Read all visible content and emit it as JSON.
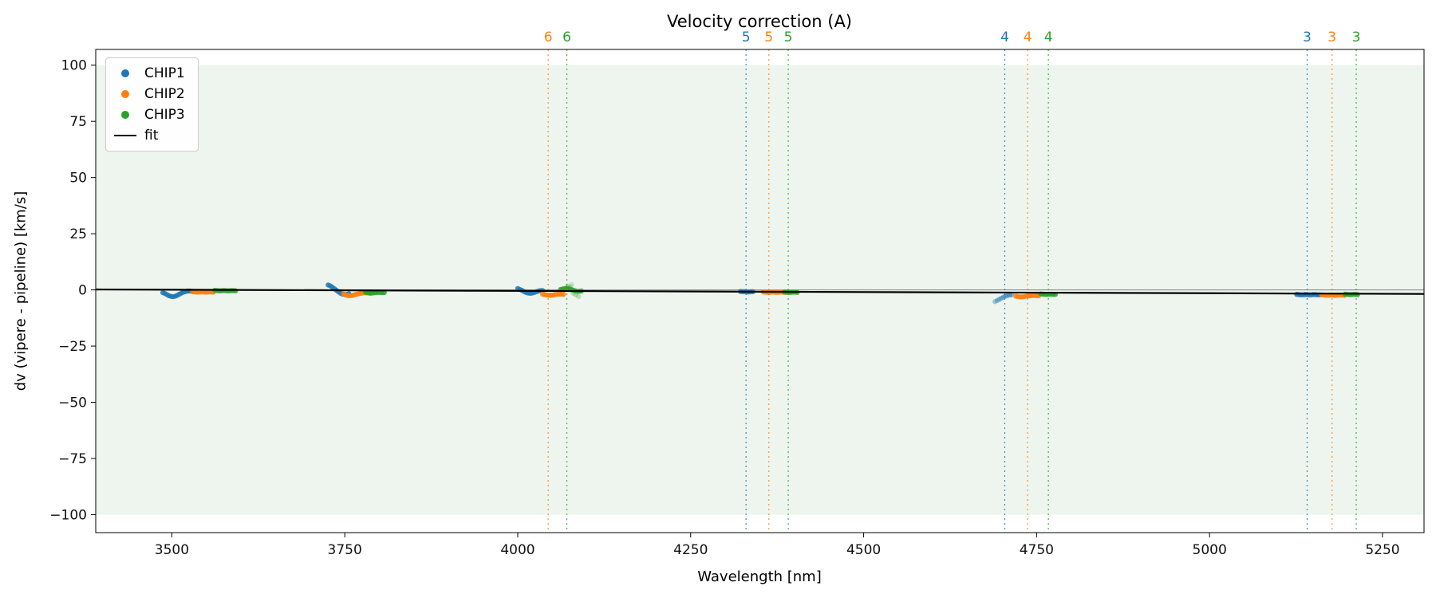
{
  "chart_data": {
    "type": "scatter",
    "title": "Velocity correction (A)",
    "xlabel": "Wavelength [nm]",
    "ylabel": "dv (vipere - pipeline) [km/s]",
    "xlim": [
      3390,
      5310
    ],
    "ylim": [
      -108,
      107
    ],
    "x_ticks": [
      3500,
      3750,
      4000,
      4250,
      4500,
      4750,
      5000,
      5250
    ],
    "y_ticks": [
      -100,
      -75,
      -50,
      -25,
      0,
      25,
      50,
      75,
      100
    ],
    "grid": false,
    "legend_position": "upper left",
    "band": {
      "y_min": -100,
      "y_max": 100,
      "color": "#edf5ee"
    },
    "zero_line": {
      "y": 0,
      "color": "#7f7f7f"
    },
    "fit": {
      "label": "fit",
      "color": "#000000",
      "x": [
        3390,
        5310
      ],
      "y": [
        0.2,
        -1.8
      ]
    },
    "series": [
      {
        "name": "CHIP1",
        "color": "#1f77b4",
        "points": [
          [
            3487,
            -1.2
          ],
          [
            3490,
            -1.6
          ],
          [
            3493,
            -2.1
          ],
          [
            3496,
            -2.6
          ],
          [
            3499,
            -2.9
          ],
          [
            3502,
            -3.0
          ],
          [
            3505,
            -2.8
          ],
          [
            3508,
            -2.4
          ],
          [
            3511,
            -1.9
          ],
          [
            3514,
            -1.4
          ],
          [
            3517,
            -1.0
          ],
          [
            3520,
            -0.7
          ],
          [
            3523,
            -0.5
          ],
          [
            3526,
            -0.5
          ],
          [
            3529,
            -0.6
          ],
          [
            3726,
            2.2
          ],
          [
            3729,
            1.8
          ],
          [
            3732,
            1.2
          ],
          [
            3735,
            0.5
          ],
          [
            3738,
            -0.2
          ],
          [
            3741,
            -0.9
          ],
          [
            3744,
            -1.5
          ],
          [
            3747,
            -1.9
          ],
          [
            3750,
            -2.1
          ],
          [
            3753,
            -2.0
          ],
          [
            3756,
            -1.7
          ],
          [
            4000,
            0.6
          ],
          [
            4003,
            0.2
          ],
          [
            4006,
            -0.2
          ],
          [
            4009,
            -0.7
          ],
          [
            4012,
            -1.1
          ],
          [
            4015,
            -1.4
          ],
          [
            4018,
            -1.5
          ],
          [
            4021,
            -1.4
          ],
          [
            4024,
            -1.1
          ],
          [
            4027,
            -0.8
          ],
          [
            4030,
            -0.5
          ],
          [
            4033,
            -0.3
          ],
          [
            4036,
            -0.3
          ],
          [
            4322,
            -0.7
          ],
          [
            4325,
            -0.8
          ],
          [
            4328,
            -0.8
          ],
          [
            4331,
            -0.9
          ],
          [
            4334,
            -0.9
          ],
          [
            4337,
            -0.8
          ],
          [
            4340,
            -0.8
          ],
          [
            4690,
            -5.2,
            0.4
          ],
          [
            4693,
            -4.7,
            0.4
          ],
          [
            4696,
            -4.2,
            0.45
          ],
          [
            4699,
            -3.7,
            0.45
          ],
          [
            4702,
            -3.2,
            0.5
          ],
          [
            4705,
            -2.8,
            0.5
          ],
          [
            4708,
            -2.5,
            0.5
          ],
          [
            4711,
            -2.3,
            0.5
          ],
          [
            4714,
            -2.2,
            0.5
          ],
          [
            5126,
            -2.0
          ],
          [
            5129,
            -2.1
          ],
          [
            5132,
            -2.2
          ],
          [
            5135,
            -2.2
          ],
          [
            5138,
            -2.1
          ],
          [
            5141,
            -2.1
          ],
          [
            5144,
            -2.2
          ],
          [
            5147,
            -2.2
          ],
          [
            5150,
            -2.1
          ],
          [
            5153,
            -2.1
          ],
          [
            5156,
            -2.2
          ],
          [
            5159,
            -2.2
          ]
        ]
      },
      {
        "name": "CHIP2",
        "color": "#ff7f0e",
        "points": [
          [
            3530,
            -0.8
          ],
          [
            3533,
            -0.9
          ],
          [
            3536,
            -1.0
          ],
          [
            3539,
            -1.0
          ],
          [
            3542,
            -0.9
          ],
          [
            3545,
            -0.9
          ],
          [
            3548,
            -1.0
          ],
          [
            3551,
            -1.0
          ],
          [
            3554,
            -0.9
          ],
          [
            3557,
            -0.9
          ],
          [
            3560,
            -1.0
          ],
          [
            3748,
            -1.8
          ],
          [
            3751,
            -2.2
          ],
          [
            3754,
            -2.5
          ],
          [
            3757,
            -2.6
          ],
          [
            3760,
            -2.5
          ],
          [
            3763,
            -2.3
          ],
          [
            3766,
            -2.0
          ],
          [
            3769,
            -1.8
          ],
          [
            3772,
            -1.6
          ],
          [
            3775,
            -1.4
          ],
          [
            3778,
            -1.3
          ],
          [
            3781,
            -1.3
          ],
          [
            3784,
            -1.4
          ],
          [
            3787,
            -1.5
          ],
          [
            4036,
            -1.9
          ],
          [
            4039,
            -2.1
          ],
          [
            4042,
            -2.3
          ],
          [
            4045,
            -2.4
          ],
          [
            4048,
            -2.4
          ],
          [
            4051,
            -2.3
          ],
          [
            4054,
            -2.1
          ],
          [
            4057,
            -2.0
          ],
          [
            4060,
            -1.9
          ],
          [
            4063,
            -1.9
          ],
          [
            4066,
            -2.0
          ],
          [
            4355,
            -0.9
          ],
          [
            4358,
            -1.0
          ],
          [
            4361,
            -1.1
          ],
          [
            4364,
            -1.1
          ],
          [
            4367,
            -1.0
          ],
          [
            4370,
            -1.0
          ],
          [
            4373,
            -1.1
          ],
          [
            4376,
            -1.1
          ],
          [
            4379,
            -1.0
          ],
          [
            4382,
            -1.0
          ],
          [
            4385,
            -1.1
          ],
          [
            4388,
            -1.1
          ],
          [
            4391,
            -1.0
          ],
          [
            4720,
            -2.8
          ],
          [
            4723,
            -3.0
          ],
          [
            4726,
            -3.1
          ],
          [
            4729,
            -3.1
          ],
          [
            4732,
            -3.0
          ],
          [
            4735,
            -2.8
          ],
          [
            4738,
            -2.7
          ],
          [
            4741,
            -2.6
          ],
          [
            4744,
            -2.5
          ],
          [
            4747,
            -2.5
          ],
          [
            4750,
            -2.6
          ],
          [
            4753,
            -2.6
          ],
          [
            5162,
            -2.2
          ],
          [
            5165,
            -2.3
          ],
          [
            5168,
            -2.4
          ],
          [
            5171,
            -2.4
          ],
          [
            5174,
            -2.3
          ],
          [
            5177,
            -2.3
          ],
          [
            5180,
            -2.4
          ],
          [
            5183,
            -2.4
          ],
          [
            5186,
            -2.3
          ],
          [
            5189,
            -2.3
          ],
          [
            5192,
            -2.3
          ],
          [
            5195,
            -2.4
          ]
        ]
      },
      {
        "name": "CHIP3",
        "color": "#2ca02c",
        "points": [
          [
            3562,
            -0.2
          ],
          [
            3565,
            -0.3
          ],
          [
            3568,
            -0.4
          ],
          [
            3571,
            -0.4
          ],
          [
            3574,
            -0.3
          ],
          [
            3577,
            -0.3
          ],
          [
            3580,
            -0.4
          ],
          [
            3583,
            -0.4
          ],
          [
            3586,
            -0.3
          ],
          [
            3589,
            -0.3
          ],
          [
            3592,
            -0.4
          ],
          [
            3780,
            -1.0
          ],
          [
            3783,
            -1.2
          ],
          [
            3786,
            -1.3
          ],
          [
            3789,
            -1.4
          ],
          [
            3792,
            -1.3
          ],
          [
            3795,
            -1.2
          ],
          [
            3798,
            -1.1
          ],
          [
            3801,
            -1.1
          ],
          [
            3804,
            -1.2
          ],
          [
            3807,
            -1.2
          ],
          [
            4062,
            0.2
          ],
          [
            4065,
            0.4
          ],
          [
            4068,
            0.6
          ],
          [
            4071,
            0.7
          ],
          [
            4074,
            0.5
          ],
          [
            4077,
            0.2
          ],
          [
            4080,
            -0.1
          ],
          [
            4083,
            -0.4
          ],
          [
            4086,
            -0.6
          ],
          [
            4089,
            -0.6
          ],
          [
            4092,
            -0.5
          ],
          [
            4072,
            1.8,
            0.3
          ],
          [
            4076,
            1.3,
            0.3
          ],
          [
            4078,
            2.4,
            0.2
          ],
          [
            4080,
            -1.4,
            0.3
          ],
          [
            4084,
            -2.2,
            0.3
          ],
          [
            4088,
            -3.0,
            0.25
          ],
          [
            4386,
            -0.9
          ],
          [
            4389,
            -1.0
          ],
          [
            4392,
            -1.1
          ],
          [
            4395,
            -1.1
          ],
          [
            4398,
            -1.0
          ],
          [
            4401,
            -1.0
          ],
          [
            4404,
            -1.1
          ],
          [
            4756,
            -1.8
          ],
          [
            4759,
            -1.9
          ],
          [
            4762,
            -2.0
          ],
          [
            4765,
            -2.0
          ],
          [
            4768,
            -1.9
          ],
          [
            4771,
            -1.9
          ],
          [
            4774,
            -2.0
          ],
          [
            4777,
            -2.0
          ],
          [
            5196,
            -1.9
          ],
          [
            5199,
            -2.0
          ],
          [
            5202,
            -2.1
          ],
          [
            5205,
            -2.1
          ],
          [
            5208,
            -2.0
          ],
          [
            5211,
            -2.0
          ],
          [
            5214,
            -2.1
          ]
        ]
      }
    ],
    "order_lines": [
      {
        "x": 4044,
        "color": "#ff7f0e",
        "label": "6"
      },
      {
        "x": 4071,
        "color": "#2ca02c",
        "label": "6"
      },
      {
        "x": 4330,
        "color": "#1f77b4",
        "label": "5"
      },
      {
        "x": 4363,
        "color": "#ff7f0e",
        "label": "5"
      },
      {
        "x": 4391,
        "color": "#2ca02c",
        "label": "5"
      },
      {
        "x": 4704,
        "color": "#1f77b4",
        "label": "4"
      },
      {
        "x": 4737,
        "color": "#ff7f0e",
        "label": "4"
      },
      {
        "x": 4767,
        "color": "#2ca02c",
        "label": "4"
      },
      {
        "x": 5141,
        "color": "#1f77b4",
        "label": "3"
      },
      {
        "x": 5177,
        "color": "#ff7f0e",
        "label": "3"
      },
      {
        "x": 5212,
        "color": "#2ca02c",
        "label": "3"
      }
    ]
  }
}
